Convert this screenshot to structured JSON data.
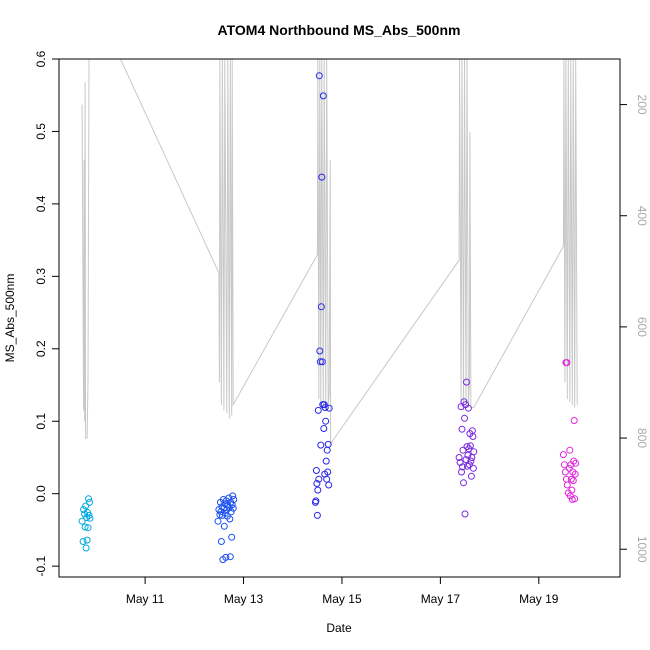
{
  "chart_data": {
    "type": "scatter",
    "title": "ATOM4 Northbound MS_Abs_500nm",
    "xlabel": "Date",
    "ylabel": "MS_Abs_500nm",
    "x_unit": "days in May",
    "xlim": [
      9.25,
      20.65
    ],
    "ylim": [
      -0.115,
      0.6
    ],
    "x_ticks": [
      {
        "value": 11,
        "label": "May 11"
      },
      {
        "value": 13,
        "label": "May 13"
      },
      {
        "value": 15,
        "label": "May 15"
      },
      {
        "value": 17,
        "label": "May 17"
      },
      {
        "value": 19,
        "label": "May 19"
      }
    ],
    "y_ticks": [
      {
        "value": -0.1,
        "label": "-0.1"
      },
      {
        "value": 0.0,
        "label": "0.0"
      },
      {
        "value": 0.1,
        "label": "0.1"
      },
      {
        "value": 0.2,
        "label": "0.2"
      },
      {
        "value": 0.3,
        "label": "0.3"
      },
      {
        "value": 0.4,
        "label": "0.4"
      },
      {
        "value": 0.5,
        "label": "0.5"
      },
      {
        "value": 0.6,
        "label": "0.6"
      }
    ],
    "y2lim": [
      1050,
      118
    ],
    "y2_ticks": [
      {
        "value": 200,
        "label": "200"
      },
      {
        "value": 400,
        "label": "400"
      },
      {
        "value": 600,
        "label": "600"
      },
      {
        "value": 800,
        "label": "800"
      },
      {
        "value": 1000,
        "label": "1000"
      }
    ],
    "grid": false,
    "legend": "none",
    "series": [
      {
        "color": "#00a8e0",
        "marker": "open-circle",
        "points": [
          [
            9.72,
            -0.038
          ],
          [
            9.74,
            -0.066
          ],
          [
            9.75,
            -0.022
          ],
          [
            9.77,
            -0.028
          ],
          [
            9.78,
            -0.046
          ],
          [
            9.79,
            -0.017
          ],
          [
            9.8,
            -0.075
          ],
          [
            9.81,
            -0.033
          ],
          [
            9.82,
            -0.064
          ],
          [
            9.83,
            -0.026
          ],
          [
            9.84,
            -0.047
          ],
          [
            9.85,
            -0.007
          ],
          [
            9.86,
            -0.03
          ],
          [
            9.87,
            -0.012
          ],
          [
            9.88,
            -0.034
          ]
        ]
      },
      {
        "color": "#1a50f0",
        "marker": "open-circle",
        "points": [
          [
            12.48,
            -0.038
          ],
          [
            12.5,
            -0.022
          ],
          [
            12.52,
            -0.029
          ],
          [
            12.53,
            -0.012
          ],
          [
            12.54,
            -0.025
          ],
          [
            12.55,
            -0.066
          ],
          [
            12.56,
            -0.018
          ],
          [
            12.57,
            -0.03
          ],
          [
            12.58,
            -0.091
          ],
          [
            12.59,
            -0.008
          ],
          [
            12.6,
            -0.02
          ],
          [
            12.61,
            -0.045
          ],
          [
            12.62,
            -0.014
          ],
          [
            12.63,
            -0.027
          ],
          [
            12.64,
            -0.088
          ],
          [
            12.65,
            -0.01
          ],
          [
            12.66,
            -0.022
          ],
          [
            12.67,
            -0.031
          ],
          [
            12.68,
            -0.016
          ],
          [
            12.7,
            -0.006
          ],
          [
            12.71,
            -0.019
          ],
          [
            12.72,
            -0.035
          ],
          [
            12.73,
            -0.087
          ],
          [
            12.74,
            -0.012
          ],
          [
            12.75,
            -0.025
          ],
          [
            12.76,
            -0.06
          ],
          [
            12.77,
            -0.015
          ],
          [
            12.78,
            -0.003
          ],
          [
            12.79,
            -0.02
          ],
          [
            12.8,
            -0.008
          ]
        ]
      },
      {
        "color": "#2828e8",
        "marker": "open-circle",
        "points": [
          [
            14.46,
            -0.012
          ],
          [
            14.47,
            -0.01
          ],
          [
            14.48,
            0.032
          ],
          [
            14.49,
            0.014
          ],
          [
            14.5,
            -0.03
          ],
          [
            14.51,
            0.005
          ],
          [
            14.52,
            0.115
          ],
          [
            14.53,
            0.02
          ],
          [
            14.54,
            0.577
          ],
          [
            14.55,
            0.197
          ],
          [
            14.56,
            0.182
          ],
          [
            14.57,
            0.067
          ],
          [
            14.58,
            0.258
          ],
          [
            14.59,
            0.437
          ],
          [
            14.6,
            0.182
          ],
          [
            14.61,
            0.123
          ],
          [
            14.62,
            0.549
          ],
          [
            14.63,
            0.09
          ],
          [
            14.64,
            0.123
          ],
          [
            14.65,
            0.027
          ],
          [
            14.66,
            0.119
          ],
          [
            14.67,
            0.1
          ],
          [
            14.68,
            0.045
          ],
          [
            14.69,
            0.02
          ],
          [
            14.7,
            0.06
          ],
          [
            14.71,
            0.03
          ],
          [
            14.72,
            0.068
          ],
          [
            14.73,
            0.012
          ],
          [
            14.74,
            0.118
          ]
        ]
      },
      {
        "color": "#7a28e0",
        "marker": "open-circle",
        "points": [
          [
            17.38,
            0.05
          ],
          [
            17.4,
            0.043
          ],
          [
            17.42,
            0.12
          ],
          [
            17.43,
            0.03
          ],
          [
            17.44,
            0.089
          ],
          [
            17.45,
            0.037
          ],
          [
            17.46,
            0.06
          ],
          [
            17.47,
            0.015
          ],
          [
            17.48,
            0.127
          ],
          [
            17.49,
            0.104
          ],
          [
            17.5,
            -0.028
          ],
          [
            17.51,
            0.123
          ],
          [
            17.52,
            0.047
          ],
          [
            17.53,
            0.154
          ],
          [
            17.54,
            0.065
          ],
          [
            17.55,
            0.038
          ],
          [
            17.56,
            0.053
          ],
          [
            17.57,
            0.118
          ],
          [
            17.58,
            0.062
          ],
          [
            17.59,
            0.04
          ],
          [
            17.6,
            0.083
          ],
          [
            17.61,
            0.066
          ],
          [
            17.62,
            0.045
          ],
          [
            17.63,
            0.024
          ],
          [
            17.64,
            0.05
          ],
          [
            17.65,
            0.087
          ],
          [
            17.66,
            0.079
          ],
          [
            17.67,
            0.035
          ],
          [
            17.68,
            0.058
          ]
        ]
      },
      {
        "color": "#e028d8",
        "marker": "open-circle",
        "points": [
          [
            19.5,
            0.054
          ],
          [
            19.52,
            0.04
          ],
          [
            19.54,
            0.03
          ],
          [
            19.55,
            0.181
          ],
          [
            19.56,
            0.02
          ],
          [
            19.57,
            0.181
          ],
          [
            19.58,
            0.012
          ],
          [
            19.6,
            0.001
          ],
          [
            19.62,
            0.035
          ],
          [
            19.63,
            0.06
          ],
          [
            19.64,
            -0.003
          ],
          [
            19.65,
            0.04
          ],
          [
            19.66,
            0.02
          ],
          [
            19.67,
            0.005
          ],
          [
            19.68,
            -0.008
          ],
          [
            19.69,
            0.03
          ],
          [
            19.7,
            0.018
          ],
          [
            19.71,
            0.045
          ],
          [
            19.72,
            0.101
          ],
          [
            19.73,
            -0.007
          ],
          [
            19.74,
            0.027
          ],
          [
            19.75,
            0.042
          ]
        ]
      }
    ],
    "secondary_line": {
      "axis": "right",
      "color": "#c8c8c8",
      "points": [
        [
          9.72,
          200
        ],
        [
          9.73,
          400
        ],
        [
          9.75,
          750
        ],
        [
          9.76,
          300
        ],
        [
          9.77,
          770
        ],
        [
          9.78,
          160
        ],
        [
          9.79,
          800
        ],
        [
          9.8,
          800
        ],
        [
          9.82,
          800
        ],
        [
          9.84,
          700
        ],
        [
          9.86,
          118
        ],
        [
          10.5,
          118
        ],
        [
          12.5,
          503
        ],
        [
          12.51,
          700
        ],
        [
          12.52,
          118
        ],
        [
          12.55,
          740
        ],
        [
          12.57,
          118
        ],
        [
          12.6,
          750
        ],
        [
          12.62,
          118
        ],
        [
          12.66,
          755
        ],
        [
          12.68,
          118
        ],
        [
          12.71,
          765
        ],
        [
          12.73,
          118
        ],
        [
          12.76,
          760
        ],
        [
          12.77,
          118
        ],
        [
          12.79,
          740
        ],
        [
          14.5,
          470
        ],
        [
          14.51,
          118
        ],
        [
          14.53,
          730
        ],
        [
          14.55,
          118
        ],
        [
          14.57,
          740
        ],
        [
          14.59,
          118
        ],
        [
          14.62,
          745
        ],
        [
          14.64,
          118
        ],
        [
          14.67,
          750
        ],
        [
          14.69,
          118
        ],
        [
          14.72,
          742
        ],
        [
          14.74,
          720
        ],
        [
          14.76,
          300
        ],
        [
          14.77,
          810
        ],
        [
          17.38,
          480
        ],
        [
          17.39,
          118
        ],
        [
          17.42,
          745
        ],
        [
          17.44,
          118
        ],
        [
          17.47,
          750
        ],
        [
          17.49,
          118
        ],
        [
          17.52,
          740
        ],
        [
          17.54,
          118
        ],
        [
          17.57,
          745
        ],
        [
          17.59,
          700
        ],
        [
          17.6,
          250
        ],
        [
          17.62,
          745
        ],
        [
          17.68,
          745
        ],
        [
          19.5,
          455
        ],
        [
          19.51,
          118
        ],
        [
          19.53,
          700
        ],
        [
          19.55,
          118
        ],
        [
          19.58,
          730
        ],
        [
          19.6,
          118
        ],
        [
          19.63,
          735
        ],
        [
          19.65,
          118
        ],
        [
          19.68,
          740
        ],
        [
          19.7,
          118
        ],
        [
          19.73,
          745
        ],
        [
          19.75,
          118
        ],
        [
          19.78,
          740
        ]
      ]
    }
  }
}
